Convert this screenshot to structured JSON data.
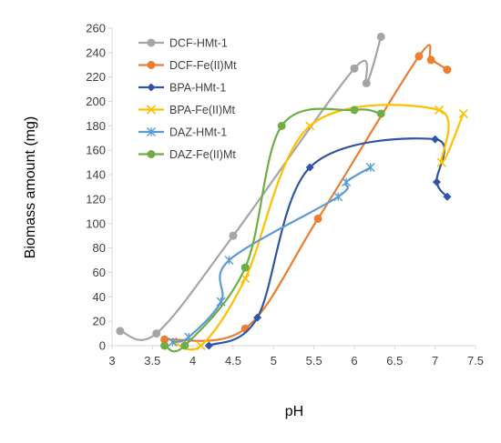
{
  "chart_data": {
    "type": "line",
    "title": "",
    "xlabel": "pH",
    "ylabel": "Biomass amount (mg)",
    "xlim": [
      3,
      7.5
    ],
    "ylim": [
      0,
      260
    ],
    "x_ticks": [
      "3",
      "3.5",
      "4",
      "4.5",
      "5",
      "5.5",
      "6",
      "6.5",
      "7",
      "7.5"
    ],
    "y_ticks": [
      "0",
      "20",
      "40",
      "60",
      "80",
      "100",
      "120",
      "140",
      "160",
      "180",
      "200",
      "220",
      "240",
      "260"
    ],
    "grid": false,
    "legend_position": "top-left",
    "series": [
      {
        "name": "DCF-HMt-1",
        "color": "#a5a5a5",
        "marker": "circle",
        "x": [
          3.1,
          3.55,
          4.5,
          6.0,
          6.15,
          6.33
        ],
        "y": [
          12,
          10,
          90,
          227,
          215,
          253
        ]
      },
      {
        "name": "DCF-Fe(II)Mt",
        "color": "#ed7d31",
        "marker": "circle",
        "x": [
          3.65,
          4.65,
          5.55,
          6.8,
          6.95,
          7.15
        ],
        "y": [
          5,
          14,
          104,
          237,
          234,
          226
        ]
      },
      {
        "name": "BPA-HMt-1",
        "color": "#2f55a4",
        "marker": "diamond",
        "x": [
          4.2,
          4.8,
          5.45,
          7.0,
          7.02,
          7.15
        ],
        "y": [
          0,
          23,
          146,
          169,
          134,
          122
        ]
      },
      {
        "name": "BPA-Fe(II)Mt",
        "color": "#ffc000",
        "marker": "x",
        "x": [
          3.75,
          4.1,
          4.65,
          5.45,
          7.05,
          7.08,
          7.35
        ],
        "y": [
          3,
          0,
          55,
          180,
          193,
          150,
          190
        ]
      },
      {
        "name": "DAZ-HMt-1",
        "color": "#5b9bd5",
        "marker": "star",
        "x": [
          3.75,
          3.95,
          4.35,
          4.45,
          5.8,
          5.9,
          6.2
        ],
        "y": [
          3,
          7,
          36,
          70,
          122,
          134,
          146
        ]
      },
      {
        "name": "DAZ-Fe(II)Mt",
        "color": "#70ad47",
        "marker": "circle",
        "x": [
          3.65,
          3.9,
          4.65,
          5.1,
          6.0,
          6.33
        ],
        "y": [
          0,
          0,
          64,
          180,
          193,
          190
        ]
      }
    ]
  }
}
